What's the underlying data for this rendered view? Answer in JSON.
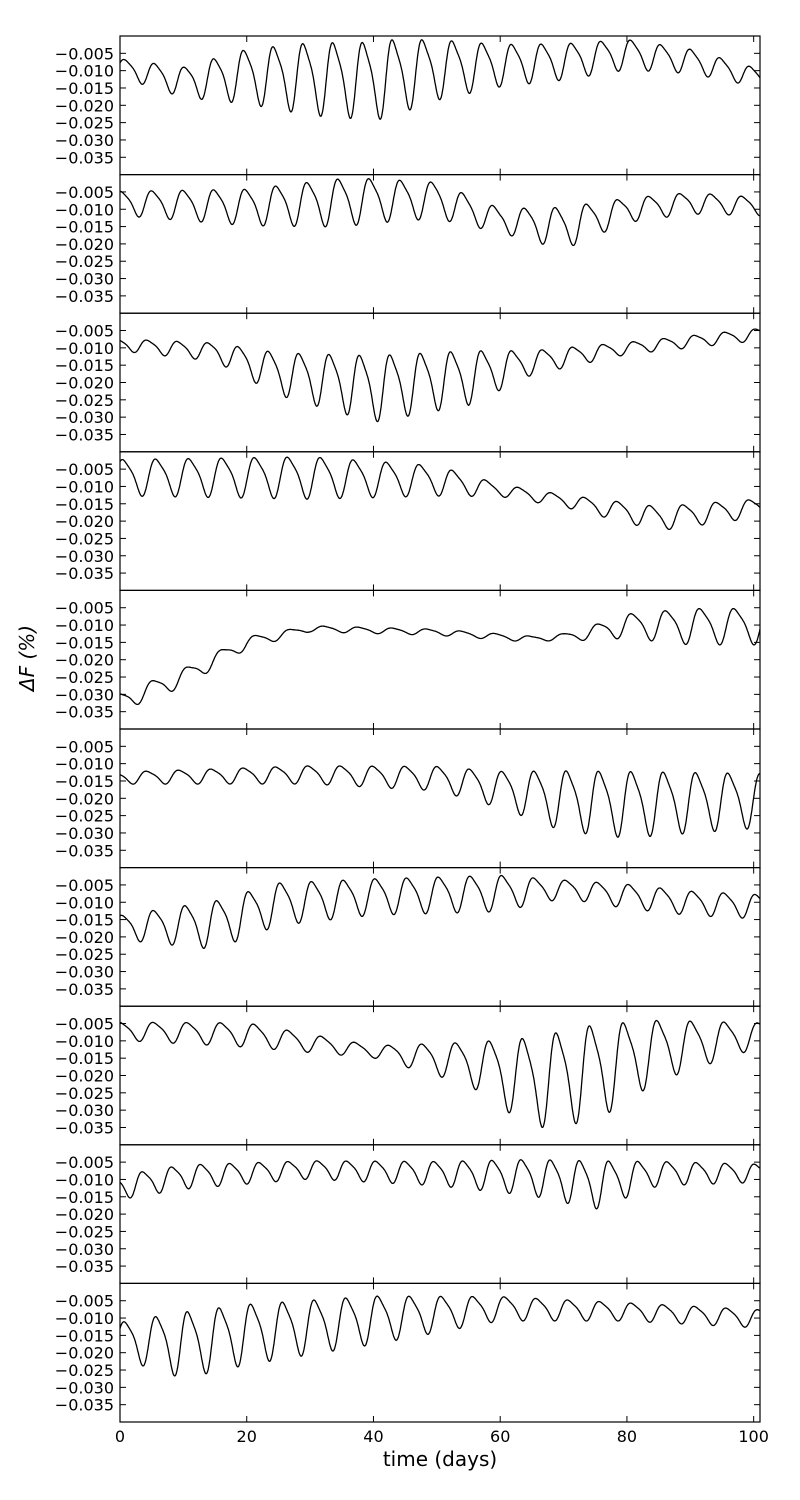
{
  "chart_data": {
    "type": "line",
    "xlabel": "time (days)",
    "ylabel": "ΔF (%)",
    "xlim": [
      0,
      101
    ],
    "ylim": [
      -0.04,
      0.0
    ],
    "xticks": [
      0,
      20,
      40,
      60,
      80,
      100
    ],
    "yticks": [
      -0.005,
      -0.01,
      -0.015,
      -0.02,
      -0.025,
      -0.03,
      -0.035
    ],
    "ytick_labels": [
      "−0.005",
      "−0.010",
      "−0.015",
      "−0.020",
      "−0.025",
      "−0.030",
      "−0.035"
    ],
    "grid": false,
    "legend": "none",
    "panels": [
      {
        "baseline": [
          [
            0,
            -0.009
          ],
          [
            10,
            -0.013
          ],
          [
            20,
            -0.011
          ],
          [
            40,
            -0.012
          ],
          [
            50,
            -0.009
          ],
          [
            60,
            -0.008
          ],
          [
            70,
            -0.007
          ],
          [
            80,
            -0.005
          ],
          [
            90,
            -0.007
          ],
          [
            101,
            -0.012
          ]
        ],
        "amplitude": [
          [
            0,
            0.003
          ],
          [
            10,
            0.005
          ],
          [
            20,
            0.009
          ],
          [
            30,
            0.012
          ],
          [
            42,
            0.013
          ],
          [
            50,
            0.01
          ],
          [
            60,
            0.007
          ],
          [
            70,
            0.006
          ],
          [
            80,
            0.005
          ],
          [
            90,
            0.004
          ],
          [
            101,
            0.003
          ]
        ],
        "period": 4.7,
        "phase": 0.3
      },
      {
        "baseline": [
          [
            0,
            -0.008
          ],
          [
            20,
            -0.009
          ],
          [
            40,
            -0.007
          ],
          [
            50,
            -0.007
          ],
          [
            60,
            -0.013
          ],
          [
            70,
            -0.015
          ],
          [
            80,
            -0.01
          ],
          [
            90,
            -0.008
          ],
          [
            101,
            -0.009
          ]
        ],
        "amplitude": [
          [
            0,
            0.004
          ],
          [
            20,
            0.006
          ],
          [
            35,
            0.008
          ],
          [
            50,
            0.006
          ],
          [
            60,
            0.004
          ],
          [
            70,
            0.007
          ],
          [
            80,
            0.004
          ],
          [
            101,
            0.003
          ]
        ],
        "period": 4.9,
        "phase": 1.1
      },
      {
        "baseline": [
          [
            0,
            -0.009
          ],
          [
            15,
            -0.011
          ],
          [
            25,
            -0.017
          ],
          [
            40,
            -0.021
          ],
          [
            55,
            -0.018
          ],
          [
            65,
            -0.014
          ],
          [
            80,
            -0.01
          ],
          [
            101,
            -0.006
          ]
        ],
        "amplitude": [
          [
            0,
            0.002
          ],
          [
            15,
            0.003
          ],
          [
            25,
            0.007
          ],
          [
            40,
            0.011
          ],
          [
            55,
            0.009
          ],
          [
            65,
            0.004
          ],
          [
            80,
            0.002
          ],
          [
            101,
            0.002
          ]
        ],
        "period": 4.8,
        "phase": 2.0
      },
      {
        "baseline": [
          [
            0,
            -0.007
          ],
          [
            30,
            -0.007
          ],
          [
            50,
            -0.008
          ],
          [
            60,
            -0.011
          ],
          [
            70,
            -0.014
          ],
          [
            85,
            -0.019
          ],
          [
            101,
            -0.016
          ]
        ],
        "amplitude": [
          [
            0,
            0.006
          ],
          [
            30,
            0.007
          ],
          [
            50,
            0.005
          ],
          [
            60,
            0.002
          ],
          [
            70,
            0.002
          ],
          [
            85,
            0.004
          ],
          [
            101,
            0.003
          ]
        ],
        "period": 5.2,
        "phase": 0.7
      },
      {
        "baseline": [
          [
            0,
            -0.032
          ],
          [
            10,
            -0.025
          ],
          [
            20,
            -0.015
          ],
          [
            30,
            -0.011
          ],
          [
            50,
            -0.012
          ],
          [
            65,
            -0.014
          ],
          [
            72,
            -0.013
          ],
          [
            80,
            -0.01
          ],
          [
            90,
            -0.01
          ],
          [
            101,
            -0.01
          ]
        ],
        "amplitude": [
          [
            0,
            0.003
          ],
          [
            10,
            0.003
          ],
          [
            20,
            0.002
          ],
          [
            30,
            0.001
          ],
          [
            50,
            0.001
          ],
          [
            70,
            0.001
          ],
          [
            80,
            0.004
          ],
          [
            90,
            0.006
          ],
          [
            101,
            0.006
          ]
        ],
        "period": 5.4,
        "phase": 1.6
      },
      {
        "baseline": [
          [
            0,
            -0.014
          ],
          [
            30,
            -0.013
          ],
          [
            50,
            -0.014
          ],
          [
            60,
            -0.017
          ],
          [
            70,
            -0.02
          ],
          [
            80,
            -0.021
          ],
          [
            101,
            -0.02
          ]
        ],
        "amplitude": [
          [
            0,
            0.002
          ],
          [
            30,
            0.003
          ],
          [
            50,
            0.004
          ],
          [
            60,
            0.006
          ],
          [
            70,
            0.01
          ],
          [
            80,
            0.011
          ],
          [
            101,
            0.009
          ]
        ],
        "period": 5.1,
        "phase": 2.4
      },
      {
        "baseline": [
          [
            0,
            -0.017
          ],
          [
            15,
            -0.016
          ],
          [
            25,
            -0.01
          ],
          [
            40,
            -0.008
          ],
          [
            60,
            -0.007
          ],
          [
            70,
            -0.006
          ],
          [
            80,
            -0.008
          ],
          [
            90,
            -0.01
          ],
          [
            101,
            -0.011
          ]
        ],
        "amplitude": [
          [
            0,
            0.004
          ],
          [
            15,
            0.008
          ],
          [
            25,
            0.007
          ],
          [
            40,
            0.006
          ],
          [
            60,
            0.006
          ],
          [
            70,
            0.003
          ],
          [
            80,
            0.004
          ],
          [
            101,
            0.004
          ]
        ],
        "period": 5.0,
        "phase": 0.9
      },
      {
        "baseline": [
          [
            0,
            -0.007
          ],
          [
            20,
            -0.008
          ],
          [
            40,
            -0.013
          ],
          [
            55,
            -0.016
          ],
          [
            65,
            -0.021
          ],
          [
            75,
            -0.018
          ],
          [
            85,
            -0.012
          ],
          [
            101,
            -0.008
          ]
        ],
        "amplitude": [
          [
            0,
            0.003
          ],
          [
            20,
            0.004
          ],
          [
            40,
            0.002
          ],
          [
            55,
            0.007
          ],
          [
            65,
            0.015
          ],
          [
            75,
            0.016
          ],
          [
            85,
            0.01
          ],
          [
            101,
            0.004
          ]
        ],
        "period": 5.3,
        "phase": 1.3
      },
      {
        "baseline": [
          [
            0,
            -0.012
          ],
          [
            10,
            -0.009
          ],
          [
            30,
            -0.007
          ],
          [
            50,
            -0.008
          ],
          [
            65,
            -0.009
          ],
          [
            75,
            -0.011
          ],
          [
            85,
            -0.008
          ],
          [
            101,
            -0.008
          ]
        ],
        "amplitude": [
          [
            0,
            0.004
          ],
          [
            10,
            0.004
          ],
          [
            30,
            0.003
          ],
          [
            50,
            0.004
          ],
          [
            65,
            0.006
          ],
          [
            75,
            0.008
          ],
          [
            85,
            0.004
          ],
          [
            101,
            0.003
          ]
        ],
        "period": 4.6,
        "phase": 2.7
      },
      {
        "baseline": [
          [
            0,
            -0.016
          ],
          [
            10,
            -0.017
          ],
          [
            20,
            -0.014
          ],
          [
            40,
            -0.01
          ],
          [
            60,
            -0.007
          ],
          [
            80,
            -0.008
          ],
          [
            101,
            -0.01
          ]
        ],
        "amplitude": [
          [
            0,
            0.006
          ],
          [
            10,
            0.011
          ],
          [
            20,
            0.01
          ],
          [
            40,
            0.008
          ],
          [
            60,
            0.004
          ],
          [
            80,
            0.003
          ],
          [
            101,
            0.003
          ]
        ],
        "period": 5.0,
        "phase": 0.4
      }
    ]
  }
}
